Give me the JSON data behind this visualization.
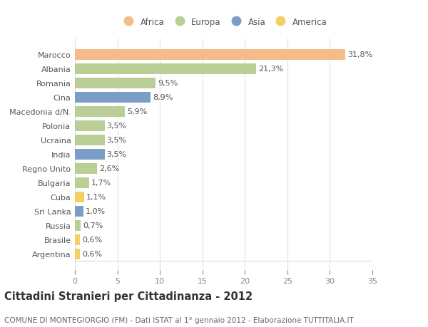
{
  "countries": [
    "Marocco",
    "Albania",
    "Romania",
    "Cina",
    "Macedonia d/N.",
    "Polonia",
    "Ucraina",
    "India",
    "Regno Unito",
    "Bulgaria",
    "Cuba",
    "Sri Lanka",
    "Russia",
    "Brasile",
    "Argentina"
  ],
  "values": [
    31.8,
    21.3,
    9.5,
    8.9,
    5.9,
    3.5,
    3.5,
    3.5,
    2.6,
    1.7,
    1.1,
    1.0,
    0.7,
    0.6,
    0.6
  ],
  "labels": [
    "31,8%",
    "21,3%",
    "9,5%",
    "8,9%",
    "5,9%",
    "3,5%",
    "3,5%",
    "3,5%",
    "2,6%",
    "1,7%",
    "1,1%",
    "1,0%",
    "0,7%",
    "0,6%",
    "0,6%"
  ],
  "continents": [
    "Africa",
    "Europa",
    "Europa",
    "Asia",
    "Europa",
    "Europa",
    "Europa",
    "Asia",
    "Europa",
    "Europa",
    "America",
    "Asia",
    "Europa",
    "America",
    "America"
  ],
  "colors": {
    "Africa": "#F5BC8A",
    "Europa": "#BACF96",
    "Asia": "#7B9EC8",
    "America": "#F5D060"
  },
  "xlim": [
    0,
    35
  ],
  "xticks": [
    0,
    5,
    10,
    15,
    20,
    25,
    30,
    35
  ],
  "title": "Cittadini Stranieri per Cittadinanza - 2012",
  "subtitle": "COMUNE DI MONTEGIORGIO (FM) - Dati ISTAT al 1° gennaio 2012 - Elaborazione TUTTITALIA.IT",
  "bg_color": "#ffffff",
  "grid_color": "#e0e0e0",
  "bar_height": 0.75,
  "label_fontsize": 8,
  "ytick_fontsize": 8,
  "xtick_fontsize": 8,
  "title_fontsize": 10.5,
  "subtitle_fontsize": 7.5,
  "legend_order": [
    "Africa",
    "Europa",
    "Asia",
    "America"
  ]
}
